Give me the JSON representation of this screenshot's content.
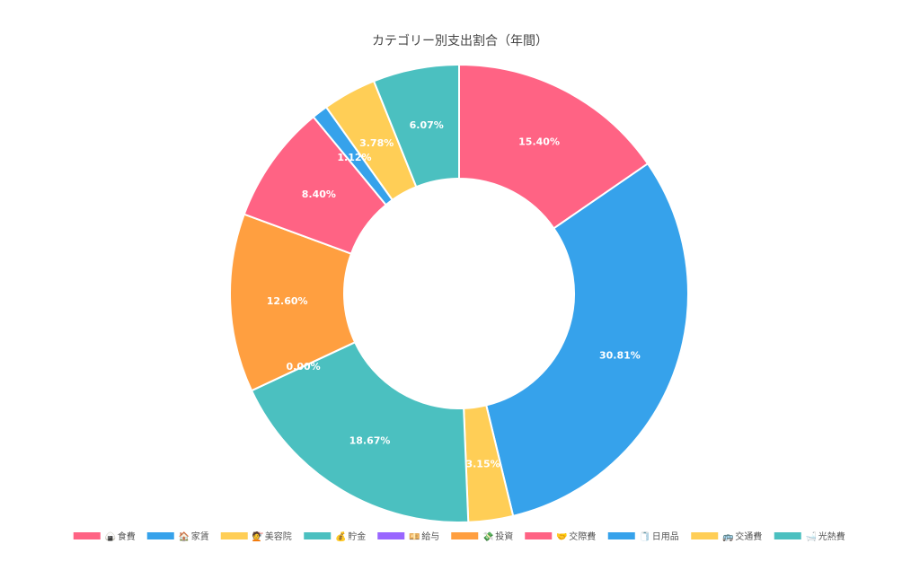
{
  "chart_data": {
    "type": "pie",
    "variant": "doughnut",
    "title": "カテゴリー別支出割合（年間）",
    "start_angle_deg": 0,
    "legend_position": "bottom",
    "slices": [
      {
        "label": "食費",
        "icon": "🍙",
        "value": 15.4,
        "display": "15.40%",
        "color": "#FF6384"
      },
      {
        "label": "家賃",
        "icon": "🏠",
        "value": 30.81,
        "display": "30.81%",
        "color": "#36A2EB"
      },
      {
        "label": "美容院",
        "icon": "💇",
        "value": 3.15,
        "display": "3.15%",
        "color": "#FFCE56"
      },
      {
        "label": "貯金",
        "icon": "💰",
        "value": 18.67,
        "display": "18.67%",
        "color": "#4BC0C0"
      },
      {
        "label": "給与",
        "icon": "💴",
        "value": 0.0,
        "display": "0.00%",
        "color": "#9966FF"
      },
      {
        "label": "投資",
        "icon": "💸",
        "value": 12.6,
        "display": "12.60%",
        "color": "#FF9F40"
      },
      {
        "label": "交際費",
        "icon": "🤝",
        "value": 8.4,
        "display": "8.40%",
        "color": "#FF6384"
      },
      {
        "label": "日用品",
        "icon": "🧻",
        "value": 1.12,
        "display": "1.12%",
        "color": "#36A2EB"
      },
      {
        "label": "交通費",
        "icon": "🚌",
        "value": 3.78,
        "display": "3.78%",
        "color": "#FFCE56"
      },
      {
        "label": "光熱費",
        "icon": "🛁",
        "value": 6.07,
        "display": "6.07%",
        "color": "#4BC0C0"
      }
    ]
  }
}
